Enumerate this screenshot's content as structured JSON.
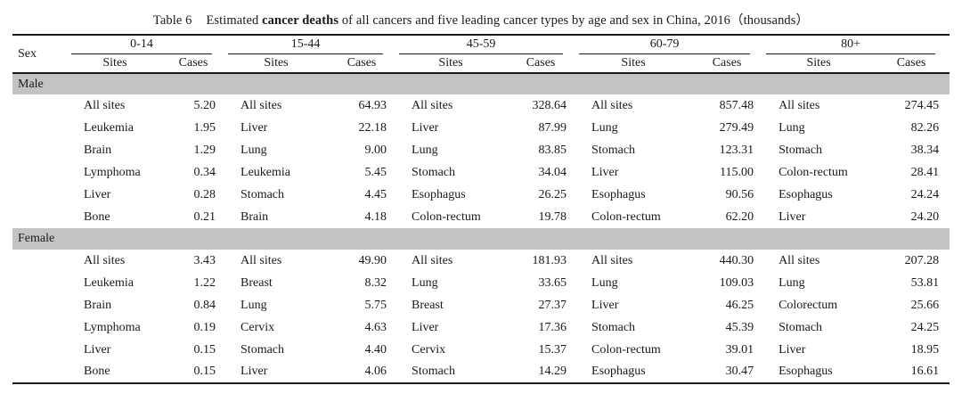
{
  "title": {
    "label": "Table 6",
    "pre_bold": "Estimated",
    "bold": "cancer deaths",
    "rest": "of all cancers and five leading cancer types by age and sex in China, 2016（thousands）"
  },
  "table": {
    "sex_header": "Sex",
    "age_groups": [
      "0-14",
      "15-44",
      "45-59",
      "60-79",
      "80+"
    ],
    "subheaders": {
      "sites": "Sites",
      "cases": "Cases"
    },
    "sections": [
      {
        "sex": "Male",
        "rows": [
          [
            [
              "All sites",
              "5.20"
            ],
            [
              "All sites",
              "64.93"
            ],
            [
              "All sites",
              "328.64"
            ],
            [
              "All sites",
              "857.48"
            ],
            [
              "All sites",
              "274.45"
            ]
          ],
          [
            [
              "Leukemia",
              "1.95"
            ],
            [
              "Liver",
              "22.18"
            ],
            [
              "Liver",
              "87.99"
            ],
            [
              "Lung",
              "279.49"
            ],
            [
              "Lung",
              "82.26"
            ]
          ],
          [
            [
              "Brain",
              "1.29"
            ],
            [
              "Lung",
              "9.00"
            ],
            [
              "Lung",
              "83.85"
            ],
            [
              "Stomach",
              "123.31"
            ],
            [
              "Stomach",
              "38.34"
            ]
          ],
          [
            [
              "Lymphoma",
              "0.34"
            ],
            [
              "Leukemia",
              "5.45"
            ],
            [
              "Stomach",
              "34.04"
            ],
            [
              "Liver",
              "115.00"
            ],
            [
              "Colon-rectum",
              "28.41"
            ]
          ],
          [
            [
              "Liver",
              "0.28"
            ],
            [
              "Stomach",
              "4.45"
            ],
            [
              "Esophagus",
              "26.25"
            ],
            [
              "Esophagus",
              "90.56"
            ],
            [
              "Esophagus",
              "24.24"
            ]
          ],
          [
            [
              "Bone",
              "0.21"
            ],
            [
              "Brain",
              "4.18"
            ],
            [
              "Colon-rectum",
              "19.78"
            ],
            [
              "Colon-rectum",
              "62.20"
            ],
            [
              "Liver",
              "24.20"
            ]
          ]
        ]
      },
      {
        "sex": "Female",
        "rows": [
          [
            [
              "All sites",
              "3.43"
            ],
            [
              "All sites",
              "49.90"
            ],
            [
              "All sites",
              "181.93"
            ],
            [
              "All sites",
              "440.30"
            ],
            [
              "All sites",
              "207.28"
            ]
          ],
          [
            [
              "Leukemia",
              "1.22"
            ],
            [
              "Breast",
              "8.32"
            ],
            [
              "Lung",
              "33.65"
            ],
            [
              "Lung",
              "109.03"
            ],
            [
              "Lung",
              "53.81"
            ]
          ],
          [
            [
              "Brain",
              "0.84"
            ],
            [
              "Lung",
              "5.75"
            ],
            [
              "Breast",
              "27.37"
            ],
            [
              "Liver",
              "46.25"
            ],
            [
              "Colorectum",
              "25.66"
            ]
          ],
          [
            [
              "Lymphoma",
              "0.19"
            ],
            [
              "Cervix",
              "4.63"
            ],
            [
              "Liver",
              "17.36"
            ],
            [
              "Stomach",
              "45.39"
            ],
            [
              "Stomach",
              "24.25"
            ]
          ],
          [
            [
              "Liver",
              "0.15"
            ],
            [
              "Stomach",
              "4.40"
            ],
            [
              "Cervix",
              "15.37"
            ],
            [
              "Colon-rectum",
              "39.01"
            ],
            [
              "Liver",
              "18.95"
            ]
          ],
          [
            [
              "Bone",
              "0.15"
            ],
            [
              "Liver",
              "4.06"
            ],
            [
              "Stomach",
              "14.29"
            ],
            [
              "Esophagus",
              "30.47"
            ],
            [
              "Esophagus",
              "16.61"
            ]
          ]
        ]
      }
    ]
  },
  "colors": {
    "band": "#c3c3c3",
    "rule": "#1a1a1a",
    "background": "#ffffff"
  }
}
